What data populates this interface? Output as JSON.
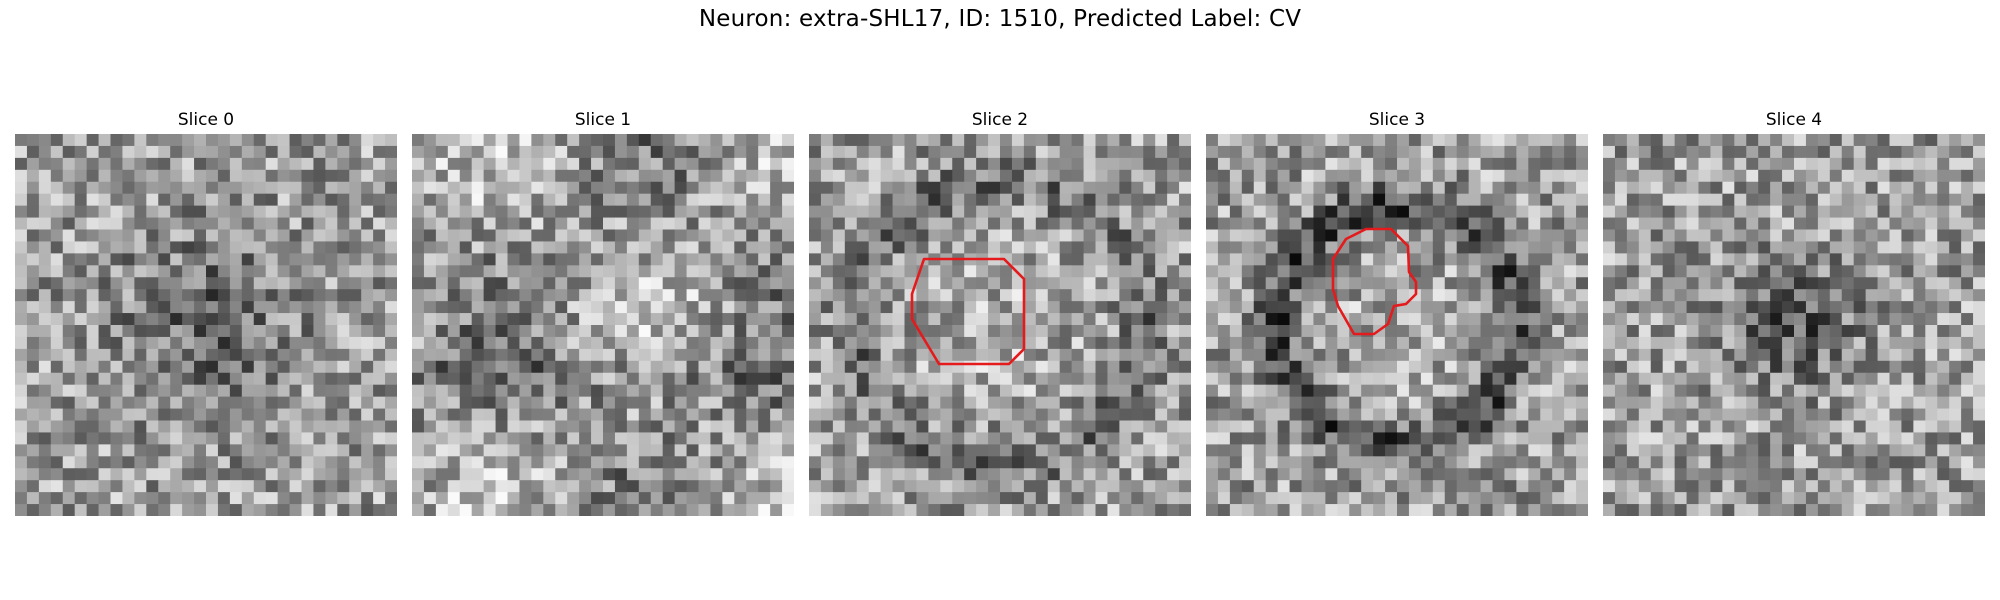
{
  "figure": {
    "title": "Neuron: extra-SHL17, ID: 1510, Predicted Label: CV"
  },
  "panels": [
    {
      "title": "Slice 0",
      "seed": 11,
      "pattern": "diffuse-dark-center",
      "contour": null
    },
    {
      "title": "Slice 1",
      "seed": 23,
      "pattern": "membrane-blobs",
      "contour": null
    },
    {
      "title": "Slice 2",
      "seed": 37,
      "pattern": "ring",
      "contour": "octagon"
    },
    {
      "title": "Slice 3",
      "seed": 51,
      "pattern": "dark-ring",
      "contour": "irregular"
    },
    {
      "title": "Slice 4",
      "seed": 67,
      "pattern": "dark-spot",
      "contour": null
    }
  ],
  "colors": {
    "contour": "#e41a1c",
    "background": "#ffffff"
  }
}
